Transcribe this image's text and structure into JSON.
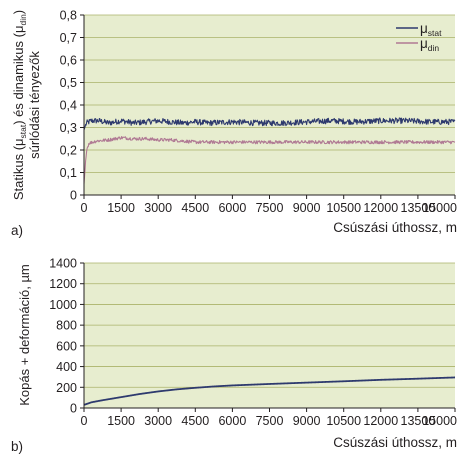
{
  "chart_data": [
    {
      "type": "line",
      "panel_label": "a)",
      "xlabel": "Csúszási úthossz, m",
      "ylabel": {
        "line1_parts": [
          "Statikus (μ",
          "stat",
          ") és dinamikus (μ",
          "din",
          ")"
        ],
        "line2": "súrlódási tényezők"
      },
      "xlim": [
        0,
        15000
      ],
      "ylim": [
        0,
        0.8
      ],
      "x_ticks": [
        0,
        1500,
        3000,
        4500,
        6000,
        7500,
        9000,
        10500,
        12000,
        13500,
        15000
      ],
      "x_tick_labels": [
        "0",
        "1500",
        "3000",
        "4500",
        "6000",
        "7500",
        "9000",
        "10500",
        "12000",
        "13500",
        "15000"
      ],
      "y_ticks": [
        0,
        0.1,
        0.2,
        0.3,
        0.4,
        0.5,
        0.6,
        0.7,
        0.8
      ],
      "y_tick_labels": [
        "0",
        "0,1",
        "0,2",
        "0,3",
        "0,4",
        "0,5",
        "0,6",
        "0,7",
        "0,8"
      ],
      "grid": true,
      "legend_position": "top-right",
      "series": [
        {
          "name": "μstat",
          "legend_symbol": "μ",
          "legend_sub": "stat",
          "color": "#2e3a6e",
          "x": [
            0,
            100,
            300,
            600,
            1000,
            1500,
            2000,
            2500,
            3000,
            3500,
            4000,
            4500,
            5000,
            6000,
            7000,
            8000,
            9000,
            10000,
            11000,
            12000,
            13000,
            14000,
            15000
          ],
          "y": [
            0.29,
            0.32,
            0.33,
            0.33,
            0.32,
            0.33,
            0.32,
            0.325,
            0.33,
            0.325,
            0.32,
            0.325,
            0.32,
            0.325,
            0.32,
            0.32,
            0.325,
            0.33,
            0.325,
            0.33,
            0.33,
            0.325,
            0.325
          ]
        },
        {
          "name": "μdin",
          "legend_symbol": "μ",
          "legend_sub": "din",
          "color": "#b07a94",
          "x": [
            0,
            100,
            200,
            500,
            1000,
            1500,
            2000,
            2500,
            3000,
            3500,
            4000,
            4500,
            5000,
            6000,
            7000,
            8000,
            9000,
            10000,
            11000,
            12000,
            13000,
            14000,
            15000
          ],
          "y": [
            0.05,
            0.2,
            0.23,
            0.24,
            0.245,
            0.255,
            0.25,
            0.25,
            0.245,
            0.245,
            0.24,
            0.235,
            0.235,
            0.235,
            0.235,
            0.235,
            0.235,
            0.235,
            0.235,
            0.235,
            0.235,
            0.235,
            0.235
          ]
        }
      ]
    },
    {
      "type": "line",
      "panel_label": "b)",
      "xlabel": "Csúszási úthossz, m",
      "ylabel": "Kopás + deformáció, µm",
      "xlim": [
        0,
        15000
      ],
      "ylim": [
        0,
        1400
      ],
      "x_ticks": [
        0,
        1500,
        3000,
        4500,
        6000,
        7500,
        9000,
        10500,
        12000,
        13500,
        15000
      ],
      "x_tick_labels": [
        "0",
        "1500",
        "3000",
        "4500",
        "6000",
        "7500",
        "9000",
        "10500",
        "12000",
        "13500",
        "15000"
      ],
      "y_ticks": [
        0,
        200,
        400,
        600,
        800,
        1000,
        1200,
        1400
      ],
      "y_tick_labels": [
        "0",
        "200",
        "400",
        "600",
        "800",
        "1000",
        "1200",
        "1400"
      ],
      "grid": true,
      "series": [
        {
          "color": "#2e3a6e",
          "x": [
            0,
            300,
            750,
            1500,
            2250,
            3000,
            3750,
            4500,
            5250,
            6000,
            7500,
            9000,
            10500,
            12000,
            13500,
            15000
          ],
          "y": [
            30,
            55,
            75,
            105,
            135,
            160,
            180,
            195,
            208,
            218,
            232,
            245,
            258,
            272,
            283,
            295
          ]
        }
      ]
    }
  ]
}
